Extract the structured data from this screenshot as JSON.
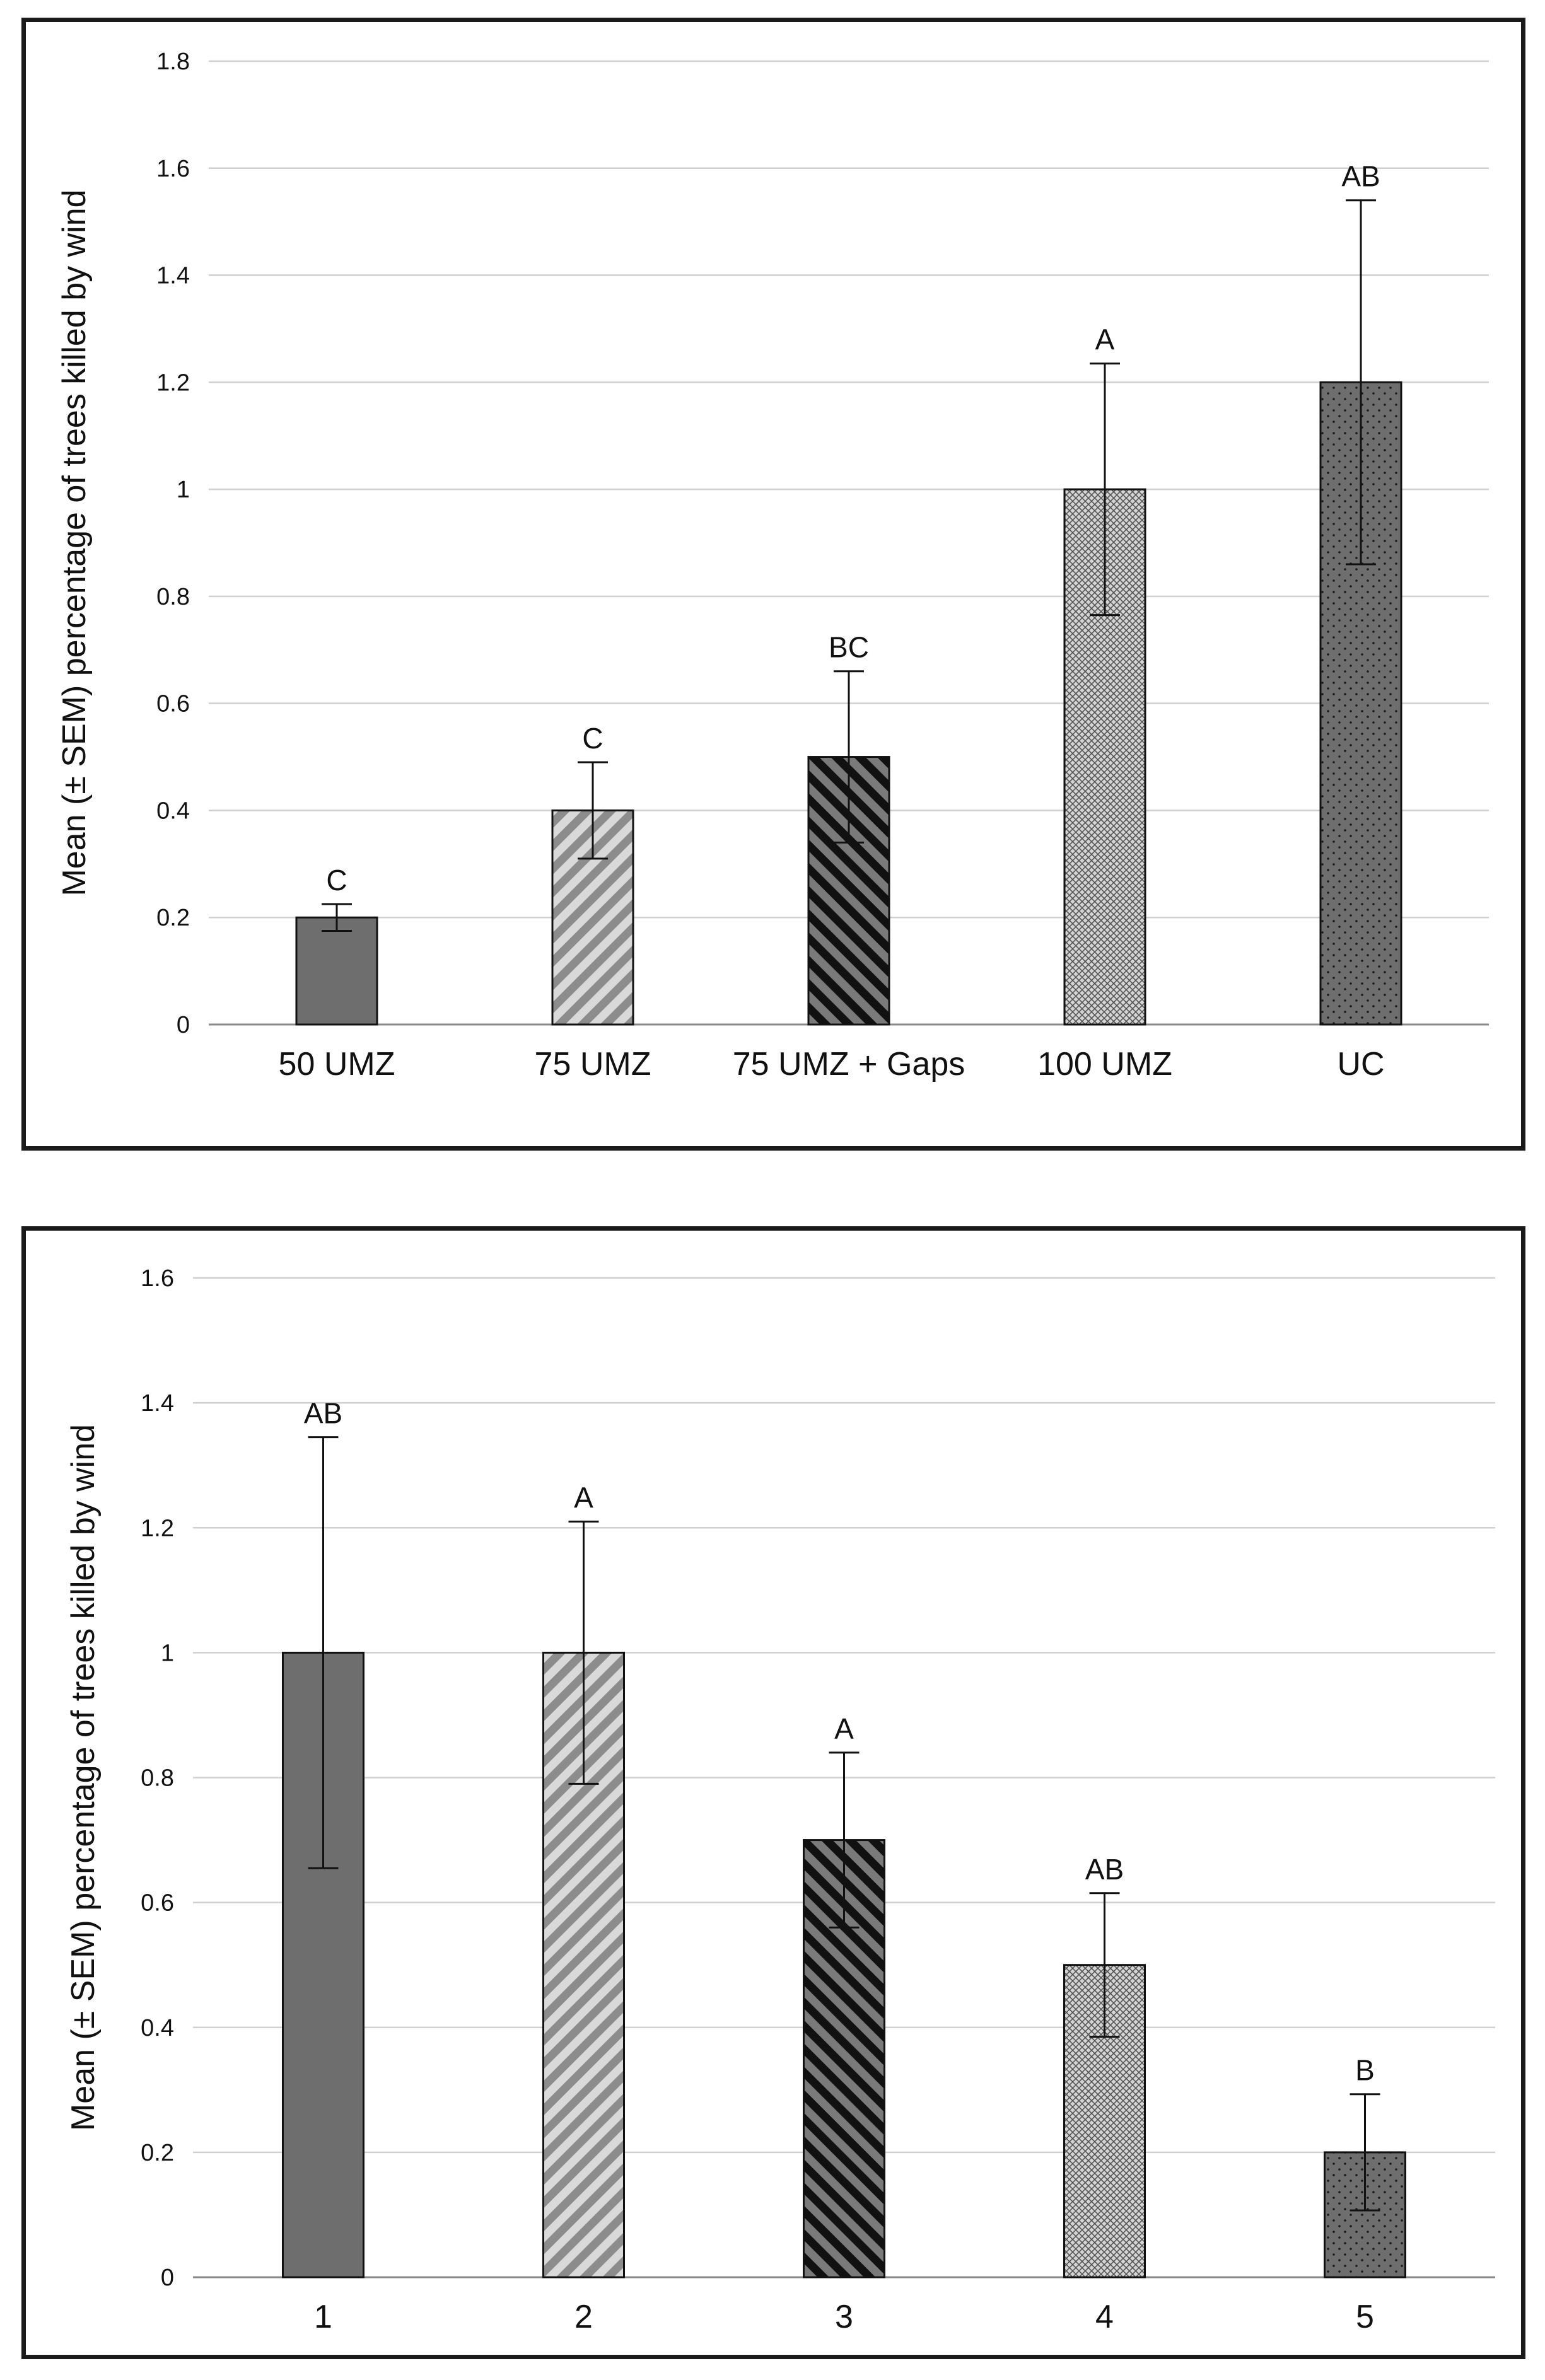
{
  "chart_data": [
    {
      "type": "bar",
      "title": "",
      "xlabel": "",
      "ylabel": "Mean (± SEM) percentage of trees killed by wind",
      "ylim": [
        0,
        1.8
      ],
      "ytick_step": 0.2,
      "ytick_labels": [
        "0",
        "0.2",
        "0.4",
        "0.6",
        "0.8",
        "1",
        "1.2",
        "1.4",
        "1.6",
        "1.8"
      ],
      "grid": true,
      "categories": [
        "50 UMZ",
        "75 UMZ",
        "75 UMZ + Gaps",
        "100 UMZ",
        "UC"
      ],
      "values": [
        0.2,
        0.4,
        0.5,
        1.0,
        1.2
      ],
      "sem": [
        0.025,
        0.09,
        0.16,
        0.235,
        0.34
      ],
      "significance_letters": [
        "C",
        "C",
        "BC",
        "A",
        "AB"
      ],
      "fill_patterns": [
        "solid",
        "diag-light",
        "diag-dark",
        "crosshatch",
        "dots"
      ]
    },
    {
      "type": "bar",
      "title": "",
      "xlabel": "",
      "ylabel": "Mean (± SEM) percentage of trees killed by wind",
      "ylim": [
        0,
        1.6
      ],
      "ytick_step": 0.2,
      "ytick_labels": [
        "0",
        "0.2",
        "0.4",
        "0.6",
        "0.8",
        "1",
        "1.2",
        "1.4",
        "1.6"
      ],
      "grid": true,
      "categories": [
        "1",
        "2",
        "3",
        "4",
        "5"
      ],
      "values": [
        1.0,
        1.0,
        0.7,
        0.5,
        0.2
      ],
      "sem": [
        0.345,
        0.21,
        0.14,
        0.115,
        0.093
      ],
      "significance_letters": [
        "AB",
        "A",
        "A",
        "AB",
        "B"
      ],
      "fill_patterns": [
        "solid",
        "diag-light",
        "diag-dark",
        "crosshatch",
        "dots"
      ]
    }
  ],
  "colors": {
    "bar_dark": "#6e6e6e",
    "bar_stripe_light": "#d9d9d9",
    "bar_stripe_dark": "#111111",
    "bar_cross_bg": "#d4d4d4",
    "grid": "#d0d0d0",
    "axis": "#8a8a8a",
    "border": "#1a1a1a"
  }
}
